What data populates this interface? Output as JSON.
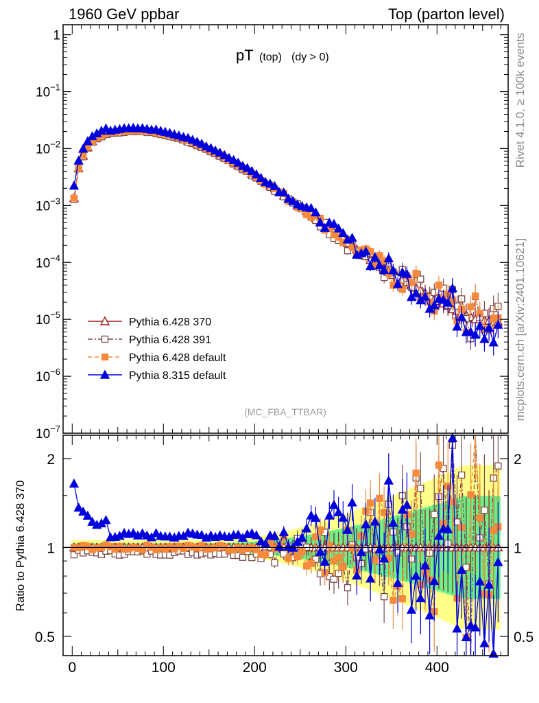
{
  "header": {
    "left": "1960 GeV ppbar",
    "right": "Top (parton level)"
  },
  "side": {
    "rivet": "Rivet 4.1.0, ≥ 100k events",
    "mcplots": "mcplots.cern.ch [arXiv:2401.10621]"
  },
  "colors": {
    "p370": "#9b1c1c",
    "p391": "#7a4a4a",
    "pdef": "#f58a3c",
    "p8": "#0000dd",
    "band_green": "#66ee88",
    "band_yellow": "#ffff88"
  },
  "chart_data": [
    {
      "type": "line",
      "panel": "main",
      "title": "pT",
      "title_sub": "(top)",
      "title_extra": "(dy > 0)",
      "analysis_tag": "(MC_FBA_TTBAR)",
      "yscale": "log",
      "ylim": [
        1e-07,
        1.5
      ],
      "xlim": [
        -10,
        478
      ],
      "ytick_values": [
        1e-07,
        1e-06,
        1e-05,
        0.0001,
        0.001,
        0.01,
        0.1,
        1
      ],
      "ytick_labels": [
        {
          "base": "10",
          "exp": "−7"
        },
        {
          "base": "10",
          "exp": "−6"
        },
        {
          "base": "10",
          "exp": "−5"
        },
        {
          "base": "10",
          "exp": "−4"
        },
        {
          "base": "10",
          "exp": "−3"
        },
        {
          "base": "10",
          "exp": "−2"
        },
        {
          "base": "10",
          "exp": "−1"
        },
        {
          "base": "1",
          "exp": ""
        }
      ],
      "legend_position": "lower-left",
      "series": [
        {
          "name": "Pythia 6.428 370",
          "key": "p370",
          "marker": "triangle-open",
          "line": "solid",
          "scale": 1.0
        },
        {
          "name": "Pythia 6.428 391",
          "key": "p391",
          "marker": "square-open",
          "line": "dashdot",
          "scale": 0.96
        },
        {
          "name": "Pythia 6.428 default",
          "key": "pdef",
          "marker": "square-filled",
          "line": "dashed",
          "scale": 1.0
        },
        {
          "name": "Pythia 8.315 default",
          "key": "p8",
          "marker": "triangle-filled",
          "line": "solid",
          "scale": 1.09
        }
      ],
      "reference_shape": {
        "x": [
          2,
          7,
          12,
          17,
          22,
          27,
          32,
          37,
          42,
          47,
          52,
          57,
          62,
          67,
          72,
          77,
          82,
          87,
          92,
          97,
          102,
          107,
          112,
          117,
          122,
          127,
          132,
          137,
          142,
          147,
          152,
          157,
          162,
          167,
          172,
          177,
          182,
          187,
          192,
          197,
          202,
          207,
          212,
          217,
          222,
          227,
          232,
          237,
          242,
          247,
          252,
          257,
          262,
          267,
          272,
          277,
          282,
          287,
          292,
          297,
          302,
          307,
          312,
          317,
          322,
          327,
          332,
          337,
          342,
          347,
          352,
          357,
          362,
          367,
          372,
          377,
          382,
          387,
          392,
          397,
          402,
          407,
          412,
          417,
          422,
          427,
          432,
          437,
          442,
          447,
          452,
          457,
          462,
          467
        ],
        "y": [
          0.00135,
          0.0045,
          0.0075,
          0.0105,
          0.0135,
          0.0155,
          0.017,
          0.0182,
          0.019,
          0.0197,
          0.02,
          0.0203,
          0.0205,
          0.0206,
          0.0206,
          0.0205,
          0.0202,
          0.0198,
          0.0193,
          0.0187,
          0.018,
          0.0172,
          0.0164,
          0.0155,
          0.0146,
          0.0137,
          0.0128,
          0.0119,
          0.011,
          0.0101,
          0.0093,
          0.0085,
          0.0077,
          0.007,
          0.0063,
          0.0057,
          0.0051,
          0.0046,
          0.0041,
          0.0036,
          0.0032,
          0.0029,
          0.0025,
          0.0022,
          0.002,
          0.0017,
          0.0015,
          0.0013,
          0.0012,
          0.001,
          0.0009,
          0.0008,
          0.0007,
          0.0006,
          0.00052,
          0.00045,
          0.00039,
          0.00034,
          0.0003,
          0.00026,
          0.00022,
          0.00019,
          0.00017,
          0.00015,
          0.00013,
          0.00011,
          0.0001,
          9e-05,
          8e-05,
          7e-05,
          6e-05,
          5.5e-05,
          5e-05,
          4.5e-05,
          4e-05,
          3.6e-05,
          3.2e-05,
          2.9e-05,
          2.6e-05,
          2.3e-05,
          2.1e-05,
          1.9e-05,
          1.7e-05,
          1.5e-05,
          1.4e-05,
          1.3e-05,
          1.2e-05,
          1.1e-05,
          1e-05,
          1e-05,
          9.5e-06,
          9.5e-06,
          9e-06,
          9e-06
        ]
      }
    },
    {
      "type": "line",
      "panel": "ratio",
      "ylabel": "Ratio to Pythia 6.428 370",
      "yscale": "log",
      "ylim": [
        0.43,
        2.4
      ],
      "xlim": [
        -10,
        478
      ],
      "ytick_values": [
        0.5,
        1,
        2
      ],
      "ytick_labels": [
        "0.5",
        "1",
        "2"
      ],
      "xtick_values": [
        0,
        100,
        200,
        300,
        400
      ],
      "xtick_labels": [
        "0",
        "100",
        "200",
        "300",
        "400"
      ],
      "series": [
        {
          "name": "Pythia 6.428 370",
          "key": "p370",
          "ratio": 1.0
        },
        {
          "name": "Pythia 6.428 391",
          "key": "p391",
          "ratio": 0.96
        },
        {
          "name": "Pythia 6.428 default",
          "key": "pdef",
          "ratio": 1.0
        },
        {
          "name": "Pythia 8.315 default",
          "key": "p8",
          "ratio_low_pt": 1.67,
          "ratio_mid_pt": 1.1
        }
      ]
    }
  ]
}
